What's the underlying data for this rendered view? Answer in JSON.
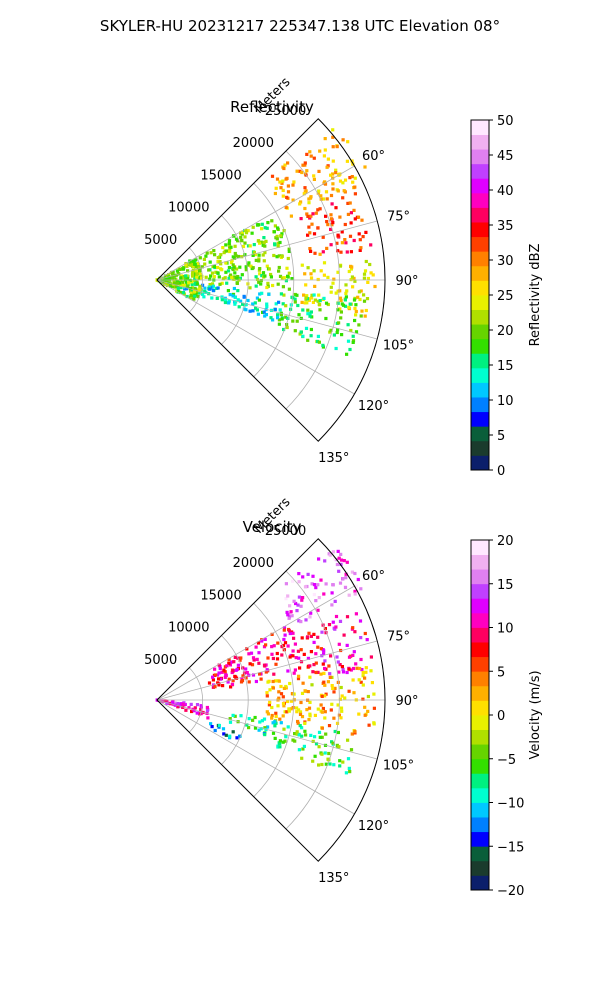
{
  "suptitle": "SKYLER-HU  20231217  225347.138 UTC Elevation 08°",
  "chart_data": [
    {
      "type": "heatmap",
      "projection": "polar-sector",
      "title": "Reflectivity",
      "range_label": "Meters",
      "range_ticks": [
        "5000",
        "10000",
        "15000",
        "20000",
        "25000"
      ],
      "range_max": 25000,
      "azimuth_range_deg": [
        45,
        135
      ],
      "azimuth_ticks": [
        "60°",
        "75°",
        "90°",
        "105°",
        "120°",
        "135°"
      ],
      "colorbar": {
        "label": "Reflectivity dBZ",
        "range": [
          0,
          50
        ],
        "ticks": [
          "0",
          "5",
          "10",
          "15",
          "20",
          "25",
          "30",
          "35",
          "40",
          "45",
          "50"
        ],
        "colors": [
          "#0b1f6b",
          "#1a3b2d",
          "#0a5e3a",
          "#0000ff",
          "#0080ff",
          "#00c8ff",
          "#00ffd0",
          "#00f080",
          "#33e000",
          "#66d400",
          "#b0e000",
          "#e8f000",
          "#ffe000",
          "#ffb000",
          "#ff8000",
          "#ff4000",
          "#ff0000",
          "#ff0060",
          "#ff00c0",
          "#e000ff",
          "#c040ff",
          "#e080f0",
          "#f0b0f0",
          "#ffe8ff"
        ]
      },
      "echo_regions": [
        {
          "az": [
            48,
            65
          ],
          "r": [
            16000,
            26000
          ],
          "value": 28
        },
        {
          "az": [
            66,
            82
          ],
          "r": [
            17000,
            24000
          ],
          "value": 33
        },
        {
          "az": [
            84,
            100
          ],
          "r": [
            16000,
            24000
          ],
          "value": 25
        },
        {
          "az": [
            60,
            95
          ],
          "r": [
            4000,
            15000
          ],
          "value": 20
        },
        {
          "az": [
            95,
            112
          ],
          "r": [
            14000,
            23000
          ],
          "value": 18
        },
        {
          "az": [
            96,
            110
          ],
          "r": [
            3000,
            14000
          ],
          "value": 13
        },
        {
          "az": [
            60,
            120
          ],
          "r": [
            0,
            5000
          ],
          "value": 20
        }
      ]
    },
    {
      "type": "heatmap",
      "projection": "polar-sector",
      "title": "Velocity",
      "range_label": "Meters",
      "range_ticks": [
        "5000",
        "10000",
        "15000",
        "20000",
        "25000"
      ],
      "range_max": 25000,
      "azimuth_range_deg": [
        45,
        135
      ],
      "azimuth_ticks": [
        "60°",
        "75°",
        "90°",
        "105°",
        "120°",
        "135°"
      ],
      "colorbar": {
        "label": "Velocity (m/s)",
        "range": [
          -20,
          20
        ],
        "ticks": [
          "−20",
          "−15",
          "−10",
          "−5",
          "0",
          "5",
          "10",
          "15",
          "20"
        ],
        "colors": [
          "#0b1f6b",
          "#1a3b2d",
          "#0a5e3a",
          "#0000ff",
          "#0080ff",
          "#00c8ff",
          "#00ffd0",
          "#00f080",
          "#33e000",
          "#66d400",
          "#b0e000",
          "#e8f000",
          "#ffe000",
          "#ffb000",
          "#ff8000",
          "#ff4000",
          "#ff0000",
          "#ff0060",
          "#ff00c0",
          "#e000ff",
          "#c040ff",
          "#e080f0",
          "#f0b0f0",
          "#ffe8ff"
        ]
      },
      "echo_regions": [
        {
          "az": [
            48,
            62
          ],
          "r": [
            17000,
            26000
          ],
          "value": 15
        },
        {
          "az": [
            60,
            80
          ],
          "r": [
            6000,
            17000
          ],
          "value": 9
        },
        {
          "az": [
            65,
            82
          ],
          "r": [
            17000,
            24000
          ],
          "value": 10
        },
        {
          "az": [
            80,
            100
          ],
          "r": [
            12000,
            24000
          ],
          "value": 2
        },
        {
          "az": [
            100,
            112
          ],
          "r": [
            14000,
            23000
          ],
          "value": -6
        },
        {
          "az": [
            100,
            108
          ],
          "r": [
            8000,
            14000
          ],
          "value": -8
        },
        {
          "az": [
            96,
            110
          ],
          "r": [
            0,
            6000
          ],
          "value": 12
        },
        {
          "az": [
            112,
            118
          ],
          "r": [
            6000,
            10000
          ],
          "value": -12
        }
      ]
    }
  ]
}
